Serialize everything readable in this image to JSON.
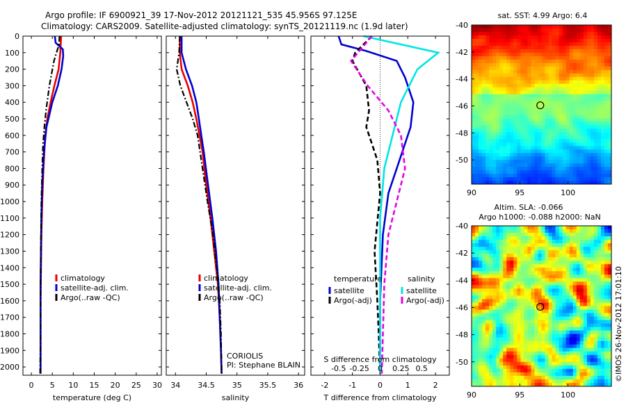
{
  "header": {
    "line1": "Argo profile: IF 6900921_39 17-Nov-2012 20121121_535 45.956S 97.125E",
    "line2": "Climatology: CARS2009. Satellite-adjusted climatology: synTS_20121119.nc (1.9d later)"
  },
  "colors": {
    "climatology": "#e60000",
    "satellite": "#0000d0",
    "argo": "#000000",
    "satellite_salinity": "#00e5e5",
    "argo_salinity": "#e600e6"
  },
  "chart_data": [
    {
      "type": "line",
      "name": "temperature-profile",
      "xlabel": "temperature (deg C)",
      "ylabel": "",
      "xlim": [
        -2,
        31
      ],
      "ylim": [
        2050,
        0
      ],
      "xticks": [
        0,
        5,
        10,
        15,
        20,
        25,
        30
      ],
      "yticks": [
        0,
        100,
        200,
        300,
        400,
        500,
        600,
        700,
        800,
        900,
        1000,
        1100,
        1200,
        1300,
        1400,
        1500,
        1600,
        1700,
        1800,
        1900,
        2000
      ],
      "legend": [
        "climatology",
        "satellite-adj. clim.",
        "Argo(..raw -QC)"
      ],
      "legend_position": "bottom-center",
      "series": [
        {
          "name": "climatology",
          "x": [
            7.1,
            6.9,
            6.5,
            5.5,
            4.6,
            3.8,
            3.3,
            2.9,
            2.6,
            2.4,
            2.3,
            2.2,
            2.2,
            2.2
          ],
          "y": [
            0,
            100,
            200,
            300,
            400,
            500,
            600,
            800,
            1000,
            1200,
            1400,
            1600,
            1800,
            2040
          ]
        },
        {
          "name": "satellite-adj. clim.",
          "x": [
            5.6,
            5.8,
            7.5,
            7.6,
            7.2,
            6.3,
            5.0,
            3.6,
            3.0,
            2.6,
            2.4,
            2.3,
            2.2,
            2.2,
            2.2
          ],
          "y": [
            0,
            40,
            80,
            120,
            200,
            300,
            400,
            550,
            700,
            900,
            1100,
            1300,
            1500,
            1800,
            2040
          ]
        },
        {
          "name": "Argo(..raw -QC)",
          "x": [
            6.7,
            6.6,
            5.4,
            4.3,
            3.5,
            3.1,
            2.8,
            2.6,
            2.4,
            2.3,
            2.2,
            2.2,
            2.1
          ],
          "y": [
            0,
            50,
            150,
            300,
            450,
            550,
            650,
            800,
            1000,
            1200,
            1500,
            1800,
            2040
          ]
        }
      ],
      "annotations": []
    },
    {
      "type": "line",
      "name": "salinity-profile",
      "xlabel": "salinity",
      "ylabel": "",
      "xlim": [
        33.85,
        36.1
      ],
      "ylim": [
        2050,
        0
      ],
      "xticks": [
        34,
        34.5,
        35,
        35.5,
        36
      ],
      "xtick_labels": [
        "34",
        "34.5",
        "35",
        "35.5",
        "36"
      ],
      "legend": [
        "climatology",
        "satellite-adj. clim.",
        "Argo(..raw -QC)"
      ],
      "legend_position": "bottom-center",
      "series": [
        {
          "name": "climatology",
          "x": [
            34.07,
            34.07,
            34.1,
            34.2,
            34.28,
            34.34,
            34.39,
            34.44,
            34.5,
            34.57,
            34.63,
            34.69,
            34.72,
            34.74,
            34.75
          ],
          "y": [
            0,
            100,
            200,
            300,
            400,
            500,
            600,
            700,
            900,
            1100,
            1300,
            1500,
            1700,
            1900,
            2040
          ]
        },
        {
          "name": "satellite-adj. clim.",
          "x": [
            34.1,
            34.1,
            34.17,
            34.27,
            34.34,
            34.38,
            34.42,
            34.46,
            34.53,
            34.6,
            34.66,
            34.7,
            34.72,
            34.74,
            34.75
          ],
          "y": [
            0,
            100,
            200,
            300,
            400,
            500,
            600,
            700,
            900,
            1100,
            1300,
            1500,
            1700,
            1900,
            2040
          ]
        },
        {
          "name": "Argo(..raw -QC)",
          "x": [
            34.07,
            34.06,
            34.02,
            34.08,
            34.18,
            34.28,
            34.36,
            34.44,
            34.52,
            34.61,
            34.67,
            34.72,
            34.74,
            34.75
          ],
          "y": [
            0,
            100,
            200,
            300,
            400,
            500,
            600,
            800,
            1000,
            1200,
            1400,
            1600,
            1800,
            2040
          ]
        }
      ],
      "annotations": [
        "CORIOLIS",
        "PI: Stephane BLAIN"
      ]
    },
    {
      "type": "line",
      "name": "difference-profile",
      "xlabel": "T difference from climatology",
      "top_label": "S difference from climatology",
      "xlim": [
        -2.5,
        2.5
      ],
      "ylim": [
        2050,
        0
      ],
      "xticks": [
        -2,
        -1,
        0,
        1,
        2
      ],
      "xtick_labels": [
        "-2",
        "-1",
        "0",
        "1",
        "2"
      ],
      "top_ticks": [
        -0.5,
        -0.25,
        0,
        0.25,
        0.5
      ],
      "top_tick_labels": [
        "-0.5",
        "-0.25",
        "0",
        "0.25",
        "0.5"
      ],
      "legend_titles": [
        "temperature",
        "salinity"
      ],
      "legend": [
        "satellite",
        "Argo(-adj)",
        "satellite",
        "Argo(-adj)"
      ],
      "legend_position": "bottom-center",
      "series": [
        {
          "name": "temperature satellite",
          "x": [
            -1.5,
            -1.4,
            -0.5,
            0.6,
            0.9,
            1.2,
            1.1,
            0.7,
            0.3,
            0.1,
            0.05,
            0.0,
            0.0,
            0.0
          ],
          "y": [
            0,
            50,
            90,
            150,
            250,
            400,
            550,
            750,
            950,
            1200,
            1400,
            1600,
            1800,
            2040
          ]
        },
        {
          "name": "temperature Argo(-adj)",
          "x": [
            -0.3,
            -0.9,
            -1.0,
            -0.5,
            -0.4,
            -0.5,
            -0.3,
            -0.1,
            0.0,
            -0.2,
            -0.1,
            -0.05,
            0.0
          ],
          "y": [
            0,
            100,
            150,
            300,
            450,
            550,
            650,
            750,
            950,
            1300,
            1600,
            1800,
            2040
          ]
        },
        {
          "name": "salinity satellite",
          "x": [
            -0.2,
            0.7,
            0.45,
            0.25,
            0.15,
            0.05,
            0.0,
            0.0,
            0.0
          ],
          "y": [
            0,
            100,
            200,
            400,
            600,
            800,
            1100,
            1500,
            2040
          ]
        },
        {
          "name": "salinity Argo(-adj)",
          "x": [
            -0.1,
            -0.35,
            -0.15,
            0.1,
            0.25,
            0.3,
            0.2,
            0.1,
            0.05,
            0.02
          ],
          "y": [
            0,
            150,
            300,
            450,
            600,
            800,
            1000,
            1200,
            1500,
            2040
          ]
        }
      ],
      "annotations": []
    },
    {
      "type": "heatmap",
      "name": "sst-map",
      "title": "sat. SST: 4.99 Argo: 6.4",
      "xlim": [
        90,
        104.5
      ],
      "ylim": [
        -51.8,
        -40
      ],
      "xticks": [
        90,
        95,
        100
      ],
      "yticks": [
        -40,
        -42,
        -44,
        -46,
        -48,
        -50
      ],
      "marker": {
        "lon": 97.125,
        "lat": -45.956
      }
    },
    {
      "type": "heatmap",
      "name": "sla-map",
      "title": "Altim. SLA: -0.066",
      "subtitle": "Argo h1000: -0.088 h2000: NaN",
      "xlim": [
        90,
        104.5
      ],
      "ylim": [
        -51.8,
        -40
      ],
      "xticks": [
        90,
        95,
        100
      ],
      "yticks": [
        -40,
        -42,
        -44,
        -46,
        -48,
        -50
      ],
      "marker": {
        "lon": 97.125,
        "lat": -45.956
      }
    }
  ],
  "footer": {
    "stamp": "©IMOS 26-Nov-2012 17:01:10"
  }
}
